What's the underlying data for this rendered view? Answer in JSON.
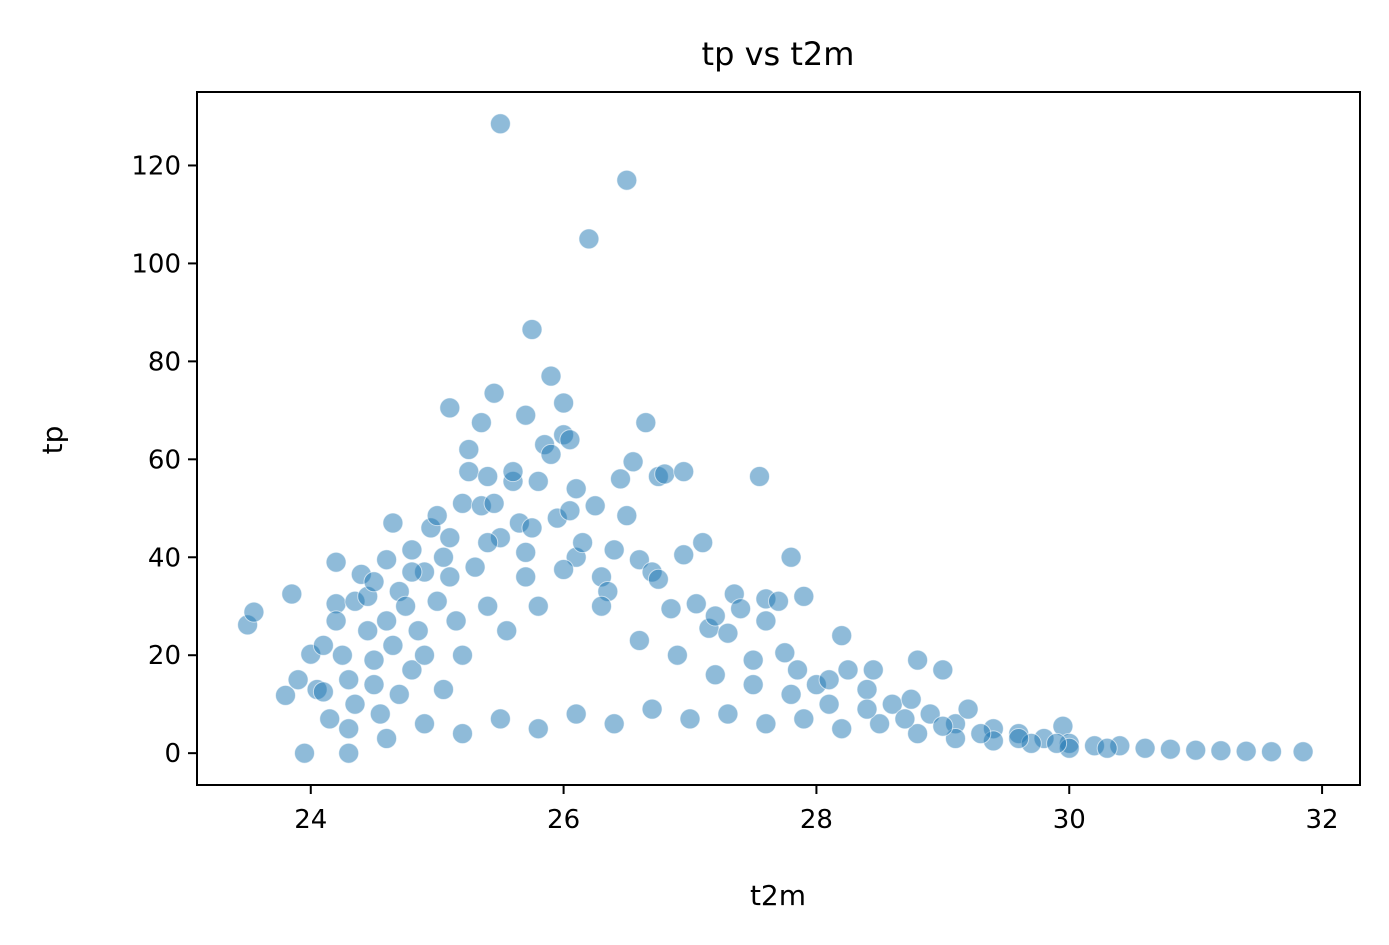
{
  "chart_data": {
    "type": "scatter",
    "title": "tp vs t2m",
    "xlabel": "t2m",
    "ylabel": "tp",
    "xlim": [
      23.1,
      32.3
    ],
    "ylim": [
      -6.5,
      135
    ],
    "xticks": [
      24,
      26,
      28,
      30,
      32
    ],
    "yticks": [
      0,
      20,
      40,
      60,
      80,
      100,
      120
    ],
    "grid": false,
    "marker_color": "#1f77b4",
    "marker_alpha": 0.5,
    "marker_edge_color": "#ffffff",
    "points": [
      [
        23.5,
        26.2
      ],
      [
        23.55,
        28.8
      ],
      [
        23.8,
        11.8
      ],
      [
        23.85,
        32.5
      ],
      [
        23.9,
        15
      ],
      [
        23.95,
        0
      ],
      [
        24.0,
        20.2
      ],
      [
        24.05,
        13
      ],
      [
        24.1,
        22
      ],
      [
        24.1,
        12.5
      ],
      [
        24.15,
        7
      ],
      [
        24.2,
        30.5
      ],
      [
        24.2,
        27
      ],
      [
        24.2,
        39
      ],
      [
        24.25,
        20
      ],
      [
        24.3,
        15
      ],
      [
        24.3,
        0
      ],
      [
        24.35,
        31
      ],
      [
        24.35,
        10
      ],
      [
        24.4,
        36.5
      ],
      [
        24.45,
        32
      ],
      [
        24.45,
        25
      ],
      [
        24.5,
        19
      ],
      [
        24.5,
        14
      ],
      [
        24.55,
        8
      ],
      [
        24.6,
        39.5
      ],
      [
        24.6,
        27
      ],
      [
        24.65,
        47
      ],
      [
        24.65,
        22
      ],
      [
        24.7,
        33
      ],
      [
        24.7,
        12
      ],
      [
        24.75,
        30
      ],
      [
        24.8,
        41.5
      ],
      [
        24.8,
        17
      ],
      [
        24.85,
        25
      ],
      [
        24.9,
        37
      ],
      [
        24.9,
        20
      ],
      [
        24.95,
        46
      ],
      [
        25.0,
        48.5
      ],
      [
        25.0,
        31
      ],
      [
        25.05,
        40
      ],
      [
        25.05,
        13
      ],
      [
        25.1,
        70.5
      ],
      [
        25.1,
        44
      ],
      [
        25.15,
        27
      ],
      [
        25.2,
        51
      ],
      [
        25.2,
        20
      ],
      [
        25.25,
        62
      ],
      [
        25.25,
        57.5
      ],
      [
        25.3,
        38
      ],
      [
        25.35,
        67.5
      ],
      [
        25.35,
        50.5
      ],
      [
        25.4,
        30
      ],
      [
        25.4,
        56.5
      ],
      [
        25.45,
        73.5
      ],
      [
        25.45,
        51
      ],
      [
        25.5,
        128.5
      ],
      [
        25.5,
        44
      ],
      [
        25.55,
        25
      ],
      [
        25.6,
        55.5
      ],
      [
        25.6,
        57.5
      ],
      [
        25.65,
        47
      ],
      [
        25.7,
        69
      ],
      [
        25.7,
        36
      ],
      [
        25.75,
        86.5
      ],
      [
        25.75,
        46
      ],
      [
        25.8,
        55.5
      ],
      [
        25.8,
        30
      ],
      [
        25.85,
        63
      ],
      [
        25.9,
        77
      ],
      [
        25.9,
        61
      ],
      [
        25.95,
        48
      ],
      [
        26.0,
        71.5
      ],
      [
        26.0,
        65
      ],
      [
        26.05,
        64
      ],
      [
        26.05,
        49.5
      ],
      [
        26.1,
        54
      ],
      [
        26.1,
        40
      ],
      [
        26.15,
        43
      ],
      [
        26.2,
        105
      ],
      [
        26.25,
        50.5
      ],
      [
        26.3,
        36
      ],
      [
        26.35,
        33
      ],
      [
        26.4,
        41.5
      ],
      [
        26.45,
        56
      ],
      [
        26.5,
        117
      ],
      [
        26.5,
        48.5
      ],
      [
        26.55,
        59.5
      ],
      [
        26.6,
        39.5
      ],
      [
        26.65,
        67.5
      ],
      [
        26.75,
        56.5
      ],
      [
        26.8,
        57
      ],
      [
        26.7,
        37
      ],
      [
        26.75,
        35.5
      ],
      [
        26.85,
        29.5
      ],
      [
        26.95,
        57.5
      ],
      [
        26.95,
        40.5
      ],
      [
        27.05,
        30.5
      ],
      [
        27.1,
        43
      ],
      [
        27.15,
        25.5
      ],
      [
        27.2,
        28
      ],
      [
        27.3,
        24.5
      ],
      [
        27.35,
        32.5
      ],
      [
        27.4,
        29.5
      ],
      [
        27.5,
        19
      ],
      [
        27.55,
        56.5
      ],
      [
        27.6,
        31.5
      ],
      [
        27.6,
        27
      ],
      [
        27.7,
        31
      ],
      [
        27.75,
        20.5
      ],
      [
        27.8,
        40
      ],
      [
        27.85,
        17
      ],
      [
        27.9,
        32
      ],
      [
        28.0,
        14
      ],
      [
        28.1,
        15
      ],
      [
        28.2,
        24
      ],
      [
        28.25,
        17
      ],
      [
        28.4,
        13
      ],
      [
        28.45,
        17
      ],
      [
        28.6,
        10
      ],
      [
        28.75,
        11
      ],
      [
        28.8,
        19
      ],
      [
        29.0,
        17
      ],
      [
        28.9,
        8
      ],
      [
        29.1,
        6
      ],
      [
        29.2,
        9
      ],
      [
        29.4,
        5
      ],
      [
        29.6,
        4
      ],
      [
        29.8,
        3
      ],
      [
        29.95,
        5.5
      ],
      [
        30.0,
        2
      ],
      [
        30.2,
        1.5
      ],
      [
        30.4,
        1.5
      ],
      [
        30.6,
        1
      ],
      [
        30.8,
        0.8
      ],
      [
        31.0,
        0.6
      ],
      [
        31.2,
        0.5
      ],
      [
        31.4,
        0.4
      ],
      [
        31.6,
        0.3
      ],
      [
        31.85,
        0.3
      ],
      [
        24.3,
        5
      ],
      [
        24.6,
        3
      ],
      [
        24.9,
        6
      ],
      [
        25.2,
        4
      ],
      [
        25.5,
        7
      ],
      [
        25.8,
        5
      ],
      [
        26.1,
        8
      ],
      [
        26.4,
        6
      ],
      [
        26.7,
        9
      ],
      [
        27.0,
        7
      ],
      [
        27.3,
        8
      ],
      [
        27.6,
        6
      ],
      [
        27.9,
        7
      ],
      [
        28.2,
        5
      ],
      [
        28.5,
        6
      ],
      [
        28.8,
        4
      ],
      [
        29.1,
        3
      ],
      [
        29.4,
        2.5
      ],
      [
        29.7,
        2
      ],
      [
        30.0,
        1
      ],
      [
        24.5,
        35
      ],
      [
        24.8,
        37
      ],
      [
        25.1,
        36
      ],
      [
        25.4,
        43
      ],
      [
        25.7,
        41
      ],
      [
        26.0,
        37.5
      ],
      [
        26.3,
        30
      ],
      [
        26.6,
        23
      ],
      [
        26.9,
        20
      ],
      [
        27.2,
        16
      ],
      [
        27.5,
        14
      ],
      [
        27.8,
        12
      ],
      [
        28.1,
        10
      ],
      [
        28.4,
        9
      ],
      [
        28.7,
        7
      ],
      [
        29.0,
        5.5
      ],
      [
        29.3,
        4
      ],
      [
        29.6,
        3
      ],
      [
        29.9,
        2
      ],
      [
        30.3,
        1
      ]
    ]
  }
}
